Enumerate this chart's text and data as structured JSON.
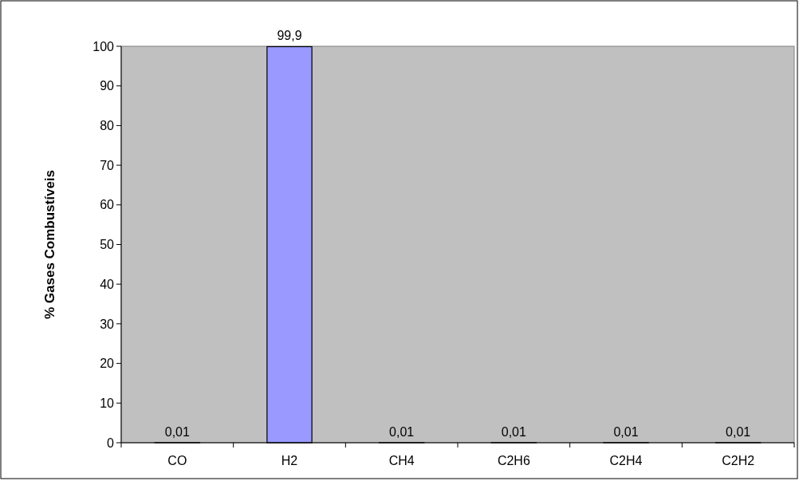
{
  "chart_data": {
    "type": "bar",
    "ylabel": "% Gases Combustíveis",
    "categories": [
      "CO",
      "H2",
      "CH4",
      "C2H6",
      "C2H4",
      "C2H2"
    ],
    "values": [
      0.01,
      99.9,
      0.01,
      0.01,
      0.01,
      0.01
    ],
    "value_labels": [
      "0,01",
      "99,9",
      "0,01",
      "0,01",
      "0,01",
      "0,01"
    ],
    "color": "#9999ff",
    "ylim": [
      0,
      100
    ],
    "yticks": [
      0,
      10,
      20,
      30,
      40,
      50,
      60,
      70,
      80,
      90,
      100
    ],
    "grid": false
  }
}
